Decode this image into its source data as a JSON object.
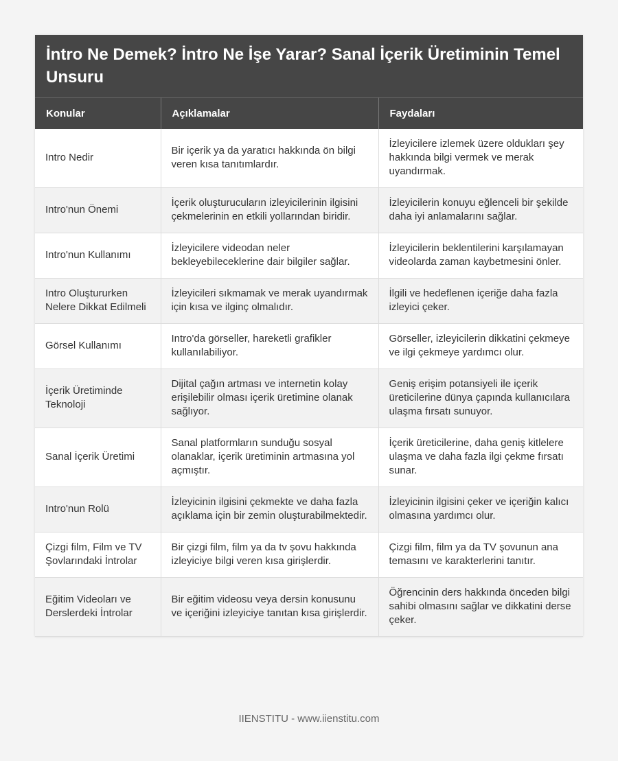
{
  "title": "İntro Ne Demek? İntro Ne İşe Yarar? Sanal İçerik Üretiminin Temel Unsuru",
  "columns": [
    "Konular",
    "Açıklamalar",
    "Faydaları"
  ],
  "rows": [
    [
      "Intro Nedir",
      "Bir içerik ya da yaratıcı hakkında ön bilgi veren kısa tanıtımlardır.",
      "İzleyicilere izlemek üzere oldukları şey hakkında bilgi vermek ve merak uyandırmak."
    ],
    [
      "Intro'nun Önemi",
      "İçerik oluşturucuların izleyicilerinin ilgisini çekmelerinin en etkili yollarından biridir.",
      "İzleyicilerin konuyu eğlenceli bir şekilde daha iyi anlamalarını sağlar."
    ],
    [
      "Intro'nun Kullanımı",
      "İzleyicilere videodan neler bekleyebileceklerine dair bilgiler sağlar.",
      "İzleyicilerin beklentilerini karşılamayan videolarda zaman kaybetmesini önler."
    ],
    [
      "Intro Oluştururken Nelere Dikkat Edilmeli",
      "İzleyicileri sıkmamak ve merak uyandırmak için kısa ve ilginç olmalıdır.",
      "İlgili ve hedeflenen içeriğe daha fazla izleyici çeker."
    ],
    [
      "Görsel Kullanımı",
      "Intro'da görseller, hareketli grafikler kullanılabiliyor.",
      "Görseller, izleyicilerin dikkatini çekmeye ve ilgi çekmeye yardımcı olur."
    ],
    [
      "İçerik Üretiminde Teknoloji",
      "Dijital çağın artması ve internetin kolay erişilebilir olması içerik üretimine olanak sağlıyor.",
      "Geniş erişim potansiyeli ile içerik üreticilerine dünya çapında kullanıcılara ulaşma fırsatı sunuyor."
    ],
    [
      "Sanal İçerik Üretimi",
      "Sanal platformların sunduğu sosyal olanaklar, içerik üretiminin artmasına yol açmıştır.",
      "İçerik üreticilerine, daha geniş kitlelere ulaşma ve daha fazla ilgi çekme fırsatı sunar."
    ],
    [
      "Intro'nun Rolü",
      "İzleyicinin ilgisini çekmekte ve daha fazla açıklama için bir zemin oluşturabilmektedir.",
      "İzleyicinin ilgisini çeker ve içeriğin kalıcı olmasına yardımcı olur."
    ],
    [
      "Çizgi film, Film ve TV Şovlarındaki İntrolar",
      "Bir çizgi film, film ya da tv şovu hakkında izleyiciye bilgi veren kısa girişlerdir.",
      "Çizgi film, film ya da TV şovunun ana temasını ve karakterlerini tanıtır."
    ],
    [
      "Eğitim Videoları ve Derslerdeki İntrolar",
      "Bir eğitim videosu veya dersin konusunu ve içeriğini izleyiciye tanıtan kısa girişlerdir.",
      "Öğrencinin ders hakkında önceden bilgi sahibi olmasını sağlar ve dikkatini derse çeker."
    ]
  ],
  "footer": "IIENSTITU - www.iienstitu.com",
  "colors": {
    "header_bg": "#464646",
    "alt_row_bg": "#f2f2f2"
  }
}
